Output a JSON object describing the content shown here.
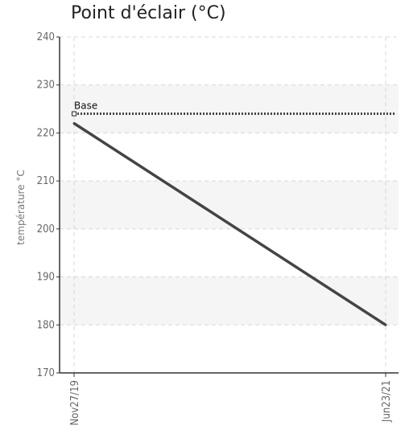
{
  "chart_data": {
    "type": "line",
    "title": "Point d'éclair (°C)",
    "ylabel": "température °C",
    "xlabel": "",
    "categories": [
      "Nov27/19",
      "Jun23/21"
    ],
    "series": [
      {
        "values": [
          222,
          180
        ],
        "color": "#444444"
      }
    ],
    "baseline": {
      "label": "Base",
      "value": 224,
      "color": "#444444"
    },
    "ylim": [
      170,
      240
    ],
    "yticks": [
      170,
      180,
      190,
      200,
      210,
      220,
      230,
      240
    ],
    "grid": true,
    "band_color": "#f5f5f5",
    "grid_color": "#d8d8d8"
  }
}
